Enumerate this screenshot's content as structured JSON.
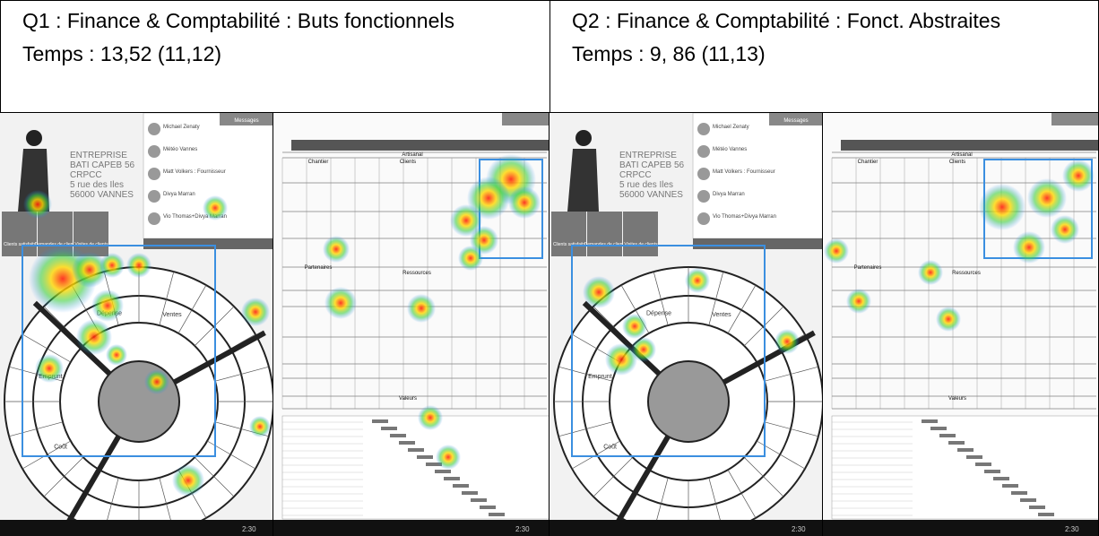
{
  "header": [
    {
      "title": "Q1 : Finance & Comptabilité : Buts fonctionnels",
      "time": "Temps : 13,52 (11,12)"
    },
    {
      "title": "Q2 : Finance & Comptabilité : Fonct. Abstraites",
      "time": "Temps : 9, 86 (11,13)"
    }
  ],
  "wheel_screen": {
    "company": [
      "ENTREPRISE",
      "BATI CAPEB 56",
      "CRPCC",
      "5 rue des Iles",
      "56000 VANNES"
    ],
    "contacts": [
      "Michael Zenaty",
      "Météo Vannes",
      "Matt Volkers : Fournisseur",
      "Divya Marran",
      "Vio Thomas+Divya Marran"
    ],
    "button": "Messages",
    "tabs": [
      "Clients satisfaits",
      "Demandes de clients",
      "Visites de clients"
    ],
    "ring_words": [
      "Dépense",
      "Emprunt",
      "Coût",
      "Ventes"
    ]
  },
  "grid_screen": {
    "sections": [
      "Artisanal",
      "Chantier",
      "Clients",
      "Partenaires",
      "Ressources",
      "Valeurs"
    ],
    "clock": "2:30"
  }
}
